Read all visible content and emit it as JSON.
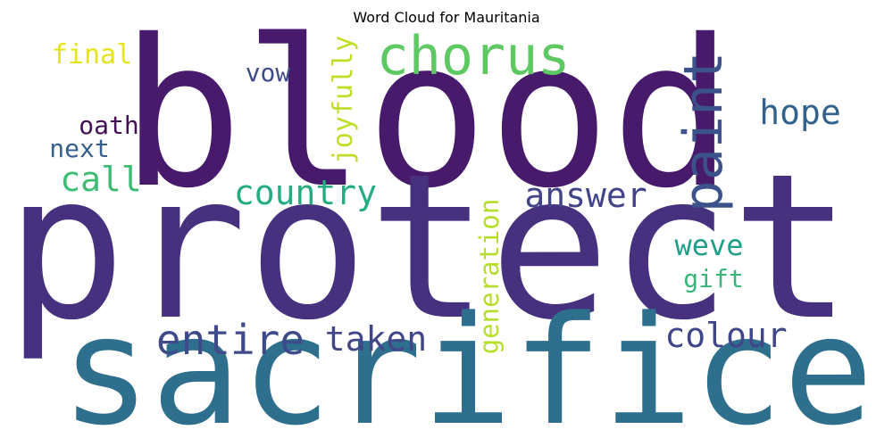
{
  "chart_data": {
    "type": "wordcloud",
    "title": "Word Cloud for Mauritania",
    "words": [
      {
        "text": "blood",
        "weight": 100,
        "color": "#481a6c",
        "vertical": false
      },
      {
        "text": "protect",
        "weight": 98,
        "color": "#46317e",
        "vertical": false
      },
      {
        "text": "sacrifice",
        "weight": 72,
        "color": "#2e6f8e",
        "vertical": false
      },
      {
        "text": "chorus",
        "weight": 26,
        "color": "#5ec962",
        "vertical": false
      },
      {
        "text": "paint",
        "weight": 26,
        "color": "#3b528b",
        "vertical": true
      },
      {
        "text": "entire",
        "weight": 21,
        "color": "#3e4a89",
        "vertical": false
      },
      {
        "text": "country",
        "weight": 17,
        "color": "#25ac82",
        "vertical": false
      },
      {
        "text": "hope",
        "weight": 17,
        "color": "#33638d",
        "vertical": false
      },
      {
        "text": "answer",
        "weight": 17,
        "color": "#414487",
        "vertical": false
      },
      {
        "text": "taken",
        "weight": 17,
        "color": "#404688",
        "vertical": false
      },
      {
        "text": "colour",
        "weight": 17,
        "color": "#3f4788",
        "vertical": false
      },
      {
        "text": "call",
        "weight": 17,
        "color": "#3dbc74",
        "vertical": false
      },
      {
        "text": "weve",
        "weight": 14,
        "color": "#1f9e89",
        "vertical": false
      },
      {
        "text": "joyfully",
        "weight": 13,
        "color": "#bddf26",
        "vertical": true
      },
      {
        "text": "generation",
        "weight": 13,
        "color": "#b5de2b",
        "vertical": true
      },
      {
        "text": "final",
        "weight": 13,
        "color": "#e5e419",
        "vertical": false
      },
      {
        "text": "vow",
        "weight": 12,
        "color": "#3e4c8a",
        "vertical": false
      },
      {
        "text": "oath",
        "weight": 12,
        "color": "#440f54",
        "vertical": false
      },
      {
        "text": "next",
        "weight": 12,
        "color": "#355f8d",
        "vertical": false
      },
      {
        "text": "gift",
        "weight": 12,
        "color": "#35b779",
        "vertical": false
      }
    ]
  }
}
